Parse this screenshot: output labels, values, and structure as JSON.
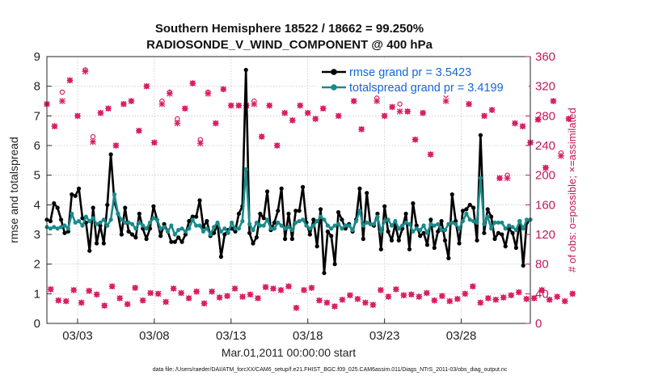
{
  "chart_data": {
    "type": "line",
    "title": "Southern Hemisphere 18522 / 18662 = 99.250%",
    "subtitle": "RADIOSONDE_V_WIND_COMPONENT @ 400 hPa",
    "xlabel": "Mar.01,2011 00:00:00 start",
    "ylabel": "rmse and totalspread",
    "ylabel_right": "# of obs: o=possible; ×=assimilated",
    "footer": "data file: /Users/raeder/DAI/ATM_forcXX/CAM6_setup/f.e21.FHIST_BGC.f09_025.CAM6assim.011/Diags_NTrS_2011-03/obs_diag_output.nc",
    "xlim": [
      1,
      32.5
    ],
    "ylim": [
      0,
      9
    ],
    "ylim_right": [
      0,
      360
    ],
    "x_ticks": [
      3,
      8,
      13,
      18,
      23,
      28
    ],
    "x_tick_labels": [
      "03/03",
      "03/08",
      "03/13",
      "03/18",
      "03/23",
      "03/28"
    ],
    "y_ticks": [
      0,
      1,
      2,
      3,
      4,
      5,
      6,
      7,
      8,
      9
    ],
    "y_ticks_right": [
      0,
      40,
      80,
      120,
      160,
      200,
      240,
      280,
      320,
      360
    ],
    "grid": true,
    "legend_position": "top-right",
    "series": [
      {
        "name": "rmse grand pr = 3.5423",
        "color": "#000000",
        "values": [
          3.5,
          3.45,
          4.05,
          3.9,
          3.5,
          3.05,
          3.1,
          4.35,
          4.3,
          4.55,
          3.55,
          3.4,
          2.45,
          3.9,
          2.7,
          3.3,
          2.7,
          4.0,
          5.7,
          4.1,
          3.7,
          3.0,
          3.9,
          3.1,
          3.0,
          2.9,
          3.7,
          3.2,
          2.85,
          3.2,
          3.95,
          3.5,
          2.95,
          3.35,
          3.1,
          2.75,
          2.75,
          2.9,
          2.75,
          3.0,
          3.45,
          3.6,
          3.6,
          4.15,
          3.25,
          3.45,
          2.95,
          3.05,
          3.35,
          2.25,
          3.0,
          3.15,
          3.2,
          3.1,
          3.7,
          3.95,
          8.55,
          3.05,
          2.7,
          2.9,
          3.7,
          3.55,
          4.45,
          3.15,
          3.4,
          3.8,
          4.55,
          2.85,
          3.7,
          2.85,
          3.8,
          3.8,
          4.6,
          3.4,
          3.0,
          3.5,
          2.6,
          3.85,
          1.7,
          3.1,
          2.95,
          2.0,
          3.75,
          3.5,
          3.2,
          3.35,
          3.1,
          3.5,
          4.55,
          2.85,
          4.4,
          3.35,
          3.3,
          3.7,
          2.5,
          3.95,
          3.1,
          2.8,
          3.35,
          2.8,
          3.2,
          3.7,
          2.5,
          4.05,
          3.3,
          2.95,
          3.05,
          2.65,
          3.5,
          2.55,
          3.1,
          3.45,
          2.8,
          2.2,
          4.35,
          3.45,
          2.7,
          3.8,
          3.85,
          4.0,
          3.9,
          2.8,
          6.35,
          3.05,
          3.85,
          3.6,
          2.85,
          3.05,
          3.0,
          2.6,
          3.2,
          3.05,
          2.55,
          3.45,
          1.95,
          3.4,
          3.5
        ]
      },
      {
        "name": "totalspread grand pr = 3.4199",
        "color": "#1a8a8a",
        "values": [
          3.25,
          3.2,
          3.25,
          3.2,
          3.25,
          3.3,
          3.2,
          3.7,
          3.4,
          3.45,
          3.3,
          3.6,
          3.45,
          3.55,
          3.35,
          3.4,
          3.5,
          3.3,
          3.5,
          4.35,
          3.7,
          3.5,
          3.4,
          3.4,
          3.35,
          3.2,
          3.4,
          3.3,
          3.2,
          3.4,
          3.55,
          3.5,
          3.2,
          3.25,
          3.1,
          3.3,
          3.0,
          3.15,
          3.2,
          3.1,
          3.2,
          3.5,
          3.3,
          3.3,
          3.1,
          3.2,
          3.0,
          3.25,
          3.4,
          3.1,
          3.2,
          3.05,
          3.4,
          3.2,
          3.2,
          3.45,
          5.2,
          3.35,
          3.15,
          3.4,
          3.3,
          3.3,
          3.5,
          3.2,
          3.2,
          3.4,
          3.3,
          3.2,
          3.25,
          3.15,
          3.4,
          3.45,
          3.5,
          3.3,
          3.2,
          3.3,
          3.45,
          3.6,
          3.5,
          3.3,
          3.2,
          3.3,
          3.35,
          3.2,
          3.3,
          3.3,
          3.15,
          3.45,
          3.8,
          3.3,
          3.4,
          3.35,
          3.35,
          3.6,
          3.1,
          3.45,
          3.5,
          3.3,
          3.45,
          3.2,
          3.3,
          3.4,
          3.35,
          3.1,
          3.2,
          3.15,
          3.3,
          3.05,
          3.35,
          3.3,
          3.35,
          3.15,
          3.15,
          3.35,
          3.4,
          3.35,
          3.2,
          3.45,
          3.7,
          3.5,
          3.45,
          3.4,
          4.9,
          3.35,
          3.6,
          3.2,
          3.4,
          3.4,
          3.4,
          3.2,
          3.3,
          3.25,
          3.15,
          3.45,
          3.2,
          3.5,
          3.5
        ]
      }
    ],
    "obs_possible": {
      "name": "# of obs possible (o)",
      "color": "#d81b60",
      "values": [
        296,
        46,
        266,
        31,
        312,
        30,
        328,
        45,
        280,
        28,
        342,
        44,
        252,
        39,
        284,
        24,
        290,
        50,
        240,
        34,
        296,
        26,
        300,
        48,
        260,
        31,
        320,
        41,
        244,
        40,
        300,
        29,
        312,
        47,
        276,
        41,
        290,
        34,
        324,
        43,
        248,
        27,
        312,
        43,
        270,
        35,
        316,
        37,
        294,
        47,
        294,
        36,
        294,
        39,
        300,
        34,
        252,
        49,
        294,
        47,
        240,
        45,
        284,
        50,
        274,
        21,
        294,
        45,
        284,
        48,
        276,
        31,
        290,
        28,
        312,
        23,
        280,
        32,
        324,
        38,
        300,
        33,
        262,
        28,
        312,
        25,
        304,
        45,
        280,
        36,
        292,
        46,
        296,
        38,
        286,
        39,
        248,
        36,
        284,
        41,
        228,
        31,
        312,
        37,
        308,
        30,
        320,
        33,
        312,
        40,
        296,
        50,
        314,
        28,
        280,
        34,
        288,
        32,
        196,
        35,
        200,
        38,
        270,
        42,
        266,
        33,
        244,
        34,
        275,
        45,
        210,
        32,
        300,
        36,
        230,
        30,
        276,
        40
      ]
    },
    "obs_assimilated": {
      "name": "# of obs assimilated (×)",
      "color": "#d81b60",
      "values": [
        296,
        46,
        266,
        31,
        300,
        30,
        328,
        45,
        280,
        28,
        340,
        44,
        245,
        39,
        284,
        24,
        290,
        50,
        240,
        34,
        296,
        26,
        300,
        48,
        260,
        31,
        320,
        41,
        244,
        40,
        296,
        29,
        310,
        47,
        270,
        41,
        290,
        34,
        324,
        43,
        243,
        27,
        310,
        43,
        270,
        35,
        316,
        37,
        294,
        47,
        294,
        36,
        294,
        39,
        296,
        34,
        252,
        49,
        294,
        47,
        240,
        45,
        284,
        50,
        274,
        21,
        294,
        45,
        284,
        48,
        276,
        31,
        290,
        28,
        312,
        23,
        280,
        32,
        324,
        38,
        300,
        33,
        262,
        28,
        312,
        25,
        300,
        45,
        280,
        36,
        292,
        46,
        286,
        38,
        286,
        39,
        248,
        36,
        284,
        41,
        228,
        31,
        312,
        37,
        300,
        30,
        320,
        33,
        312,
        40,
        296,
        50,
        314,
        28,
        280,
        34,
        288,
        32,
        196,
        35,
        196,
        38,
        270,
        42,
        266,
        33,
        244,
        34,
        275,
        45,
        210,
        32,
        300,
        36,
        226,
        30,
        276,
        40
      ]
    }
  }
}
